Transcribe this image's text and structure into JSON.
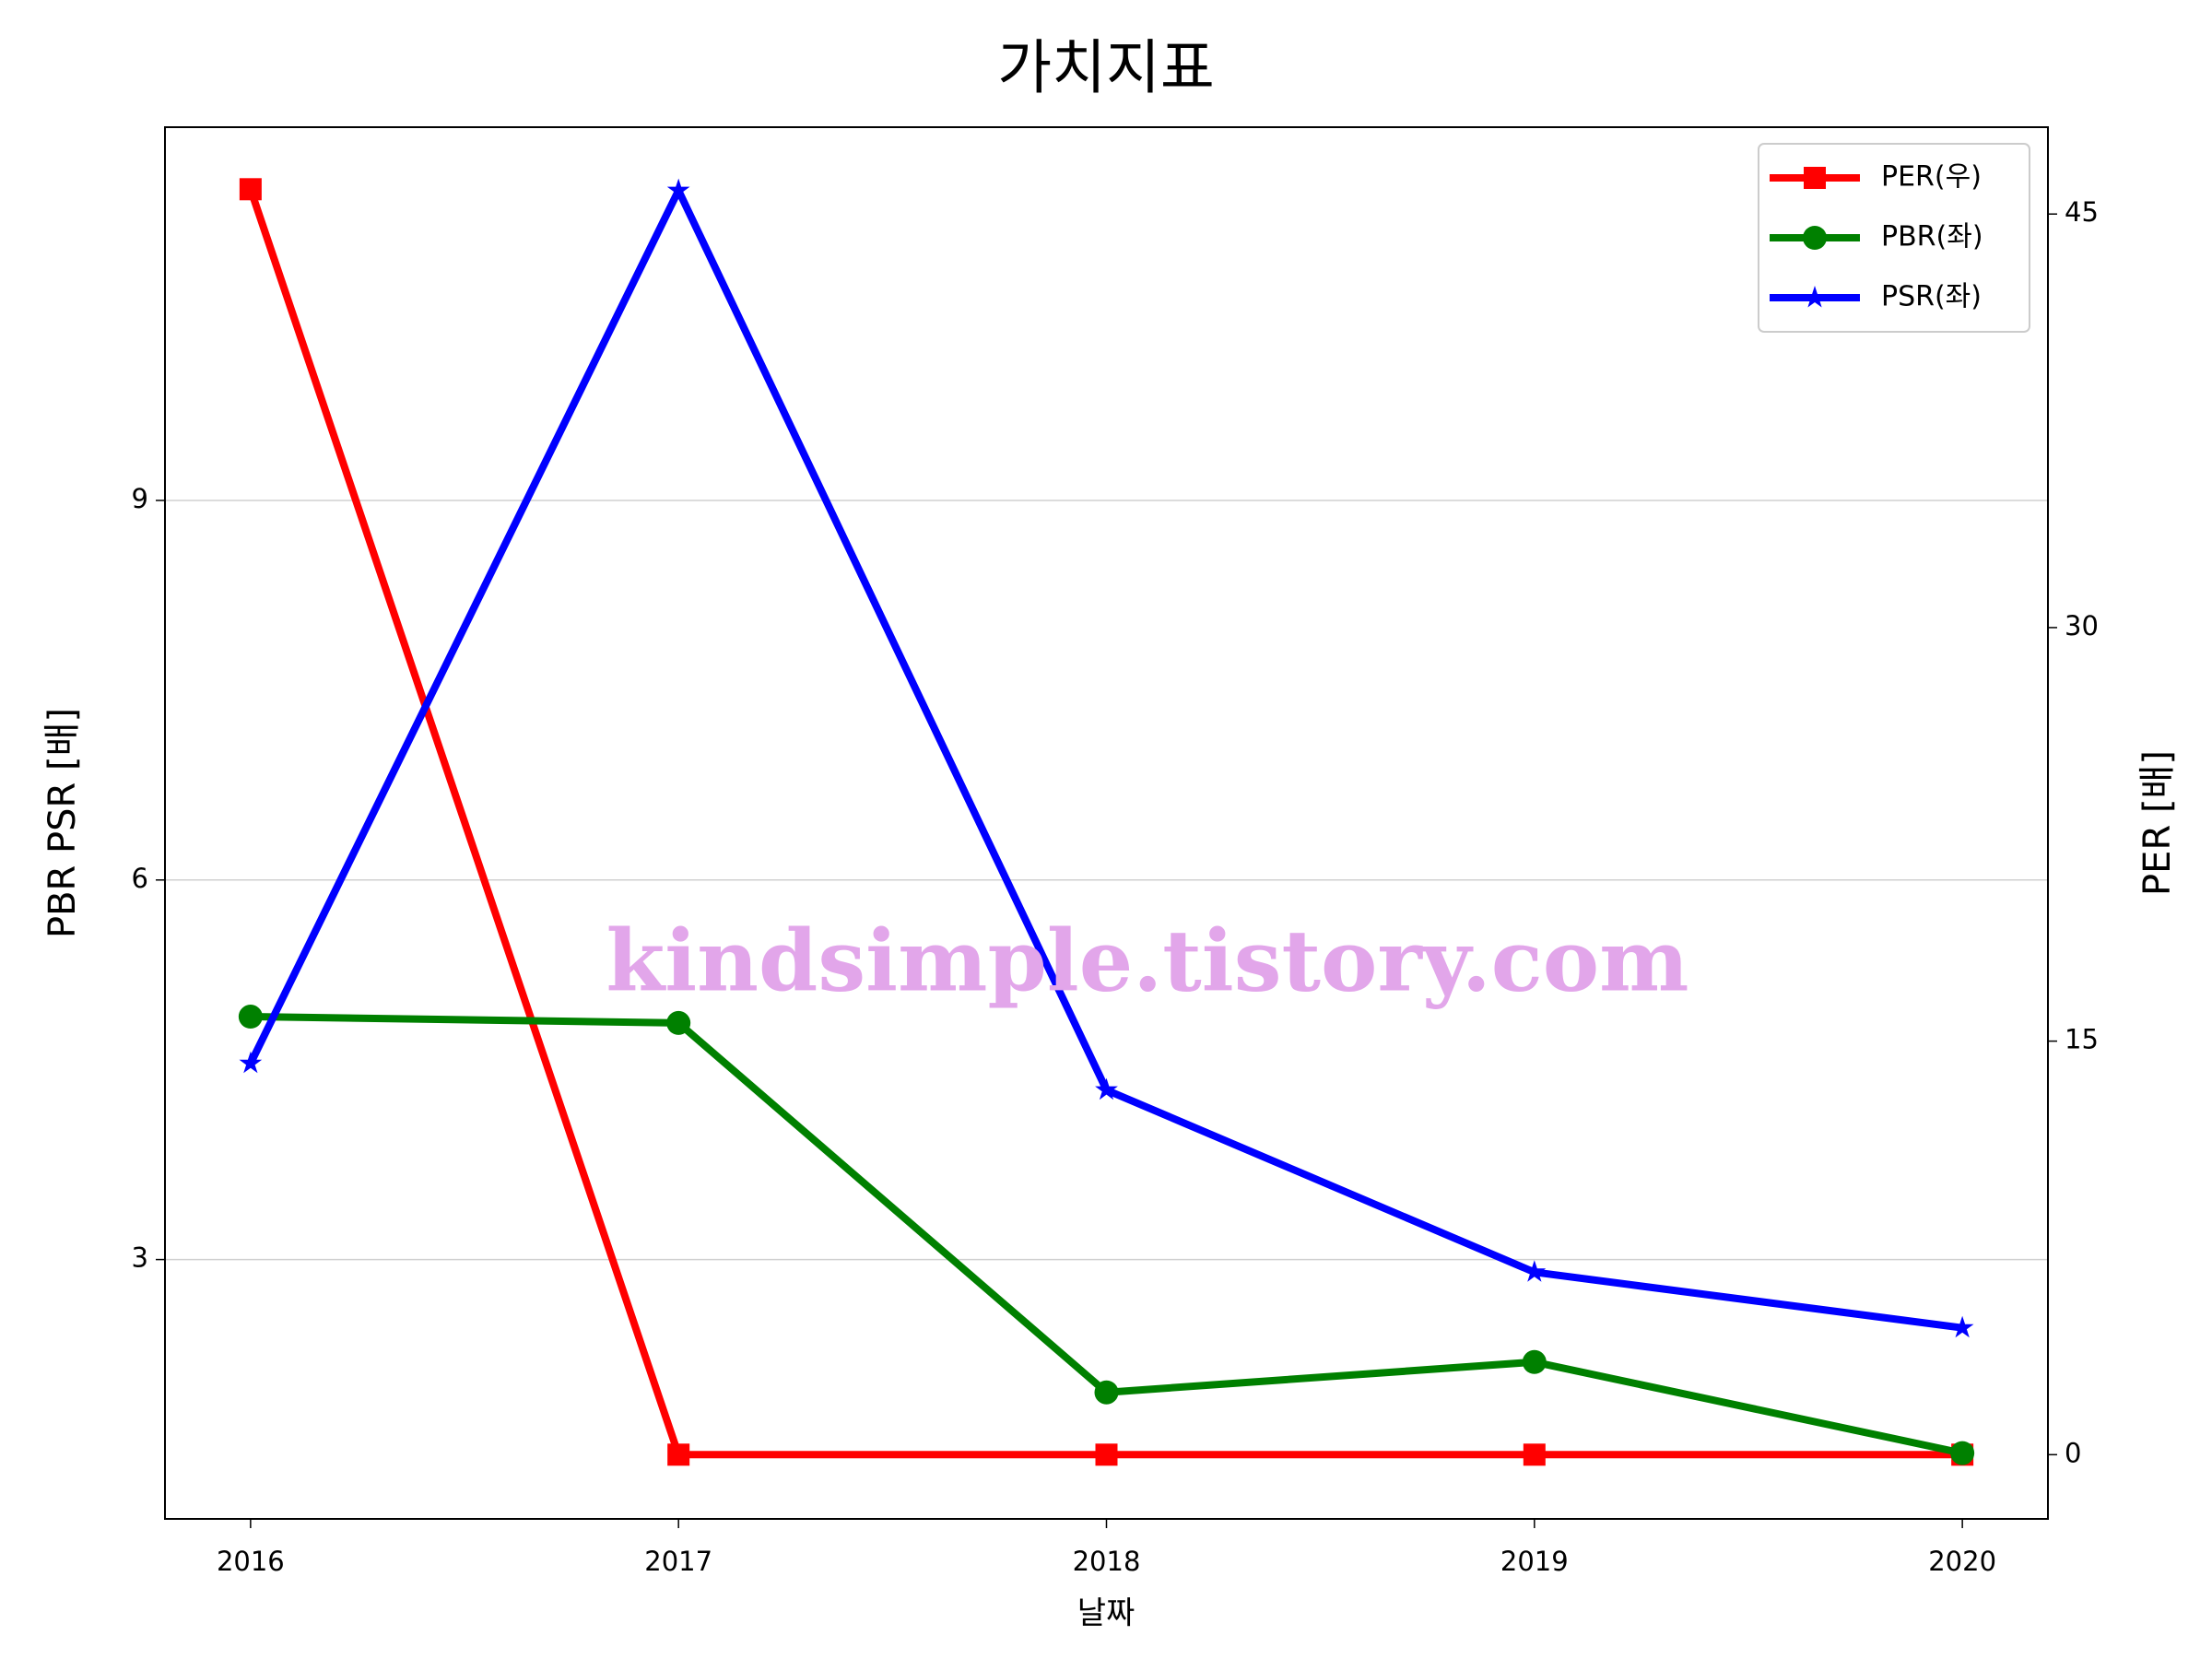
{
  "chart_data": {
    "type": "line",
    "title": "가치지표",
    "x_label": "날짜",
    "y_label": "PBR PSR [배]",
    "y2_label": "PER [배]",
    "watermark": "kindsimple.tistory.com",
    "x": [
      2016,
      2017,
      2018,
      2019,
      2020
    ],
    "xlim": [
      2015.8,
      2020.2
    ],
    "xticks": [
      2016,
      2017,
      2018,
      2019,
      2020
    ],
    "ylim": [
      0.95,
      11.95
    ],
    "yticks": [
      3,
      6,
      9
    ],
    "y2lim": [
      -2.33,
      48.15
    ],
    "y2ticks": [
      0,
      15,
      30,
      45
    ],
    "grid": true,
    "legend": "upper right",
    "y_label_color": "#008000",
    "y2_label_color": "#ff0000",
    "series": [
      {
        "name": "PER(우)",
        "color": "#ff0000",
        "marker": "square",
        "axis": "y2",
        "values": [
          45.9,
          0,
          0,
          0,
          0
        ]
      },
      {
        "name": "PBR(좌)",
        "color": "#008000",
        "marker": "circle",
        "values": [
          4.92,
          4.87,
          1.95,
          2.19,
          1.47
        ]
      },
      {
        "name": "PSR(좌)",
        "color": "#0000ff",
        "marker": "star",
        "values": [
          4.55,
          11.45,
          4.34,
          2.9,
          2.46
        ]
      }
    ]
  }
}
